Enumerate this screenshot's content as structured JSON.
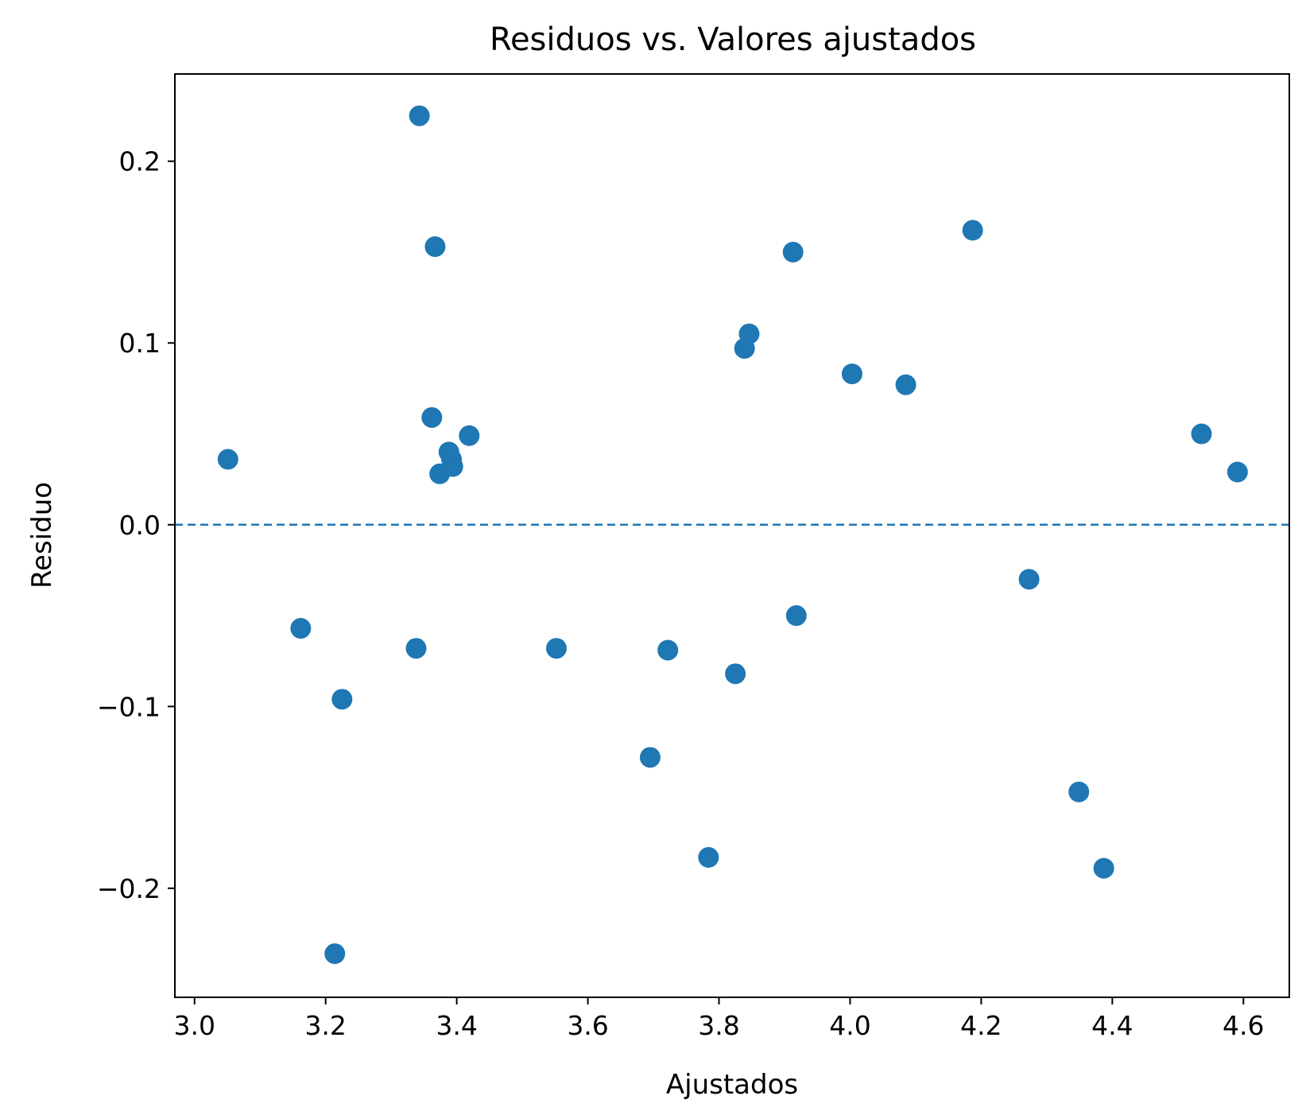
{
  "chart_data": {
    "type": "scatter",
    "title": "Residuos vs. Valores ajustados",
    "xlabel": "Ajustados",
    "ylabel": "Residuo",
    "xlim": [
      2.97,
      4.67
    ],
    "ylim": [
      -0.26,
      0.248
    ],
    "xticks": [
      3.0,
      3.2,
      3.4,
      3.6,
      3.8,
      4.0,
      4.2,
      4.4,
      4.6
    ],
    "xtick_labels": [
      "3.0",
      "3.2",
      "3.4",
      "3.6",
      "3.8",
      "4.0",
      "4.2",
      "4.4",
      "4.6"
    ],
    "yticks": [
      -0.2,
      -0.1,
      0.0,
      0.1,
      0.2
    ],
    "ytick_labels": [
      "−0.2",
      "−0.1",
      "0.0",
      "0.1",
      "0.2"
    ],
    "reference_line": {
      "y": 0.0,
      "style": "dashed"
    },
    "grid": false,
    "color": "#1f77b4",
    "x": [
      3.051,
      3.162,
      3.214,
      3.225,
      3.338,
      3.362,
      3.367,
      3.343,
      3.374,
      3.388,
      3.392,
      3.394,
      3.419,
      3.552,
      3.695,
      3.722,
      3.784,
      3.825,
      3.839,
      3.846,
      3.913,
      3.918,
      4.003,
      4.085,
      4.187,
      4.273,
      4.349,
      4.387,
      4.536,
      4.591
    ],
    "y": [
      0.036,
      -0.057,
      -0.236,
      -0.096,
      -0.068,
      0.059,
      0.153,
      0.225,
      0.028,
      0.04,
      0.036,
      0.032,
      0.049,
      -0.068,
      -0.128,
      -0.069,
      -0.183,
      -0.082,
      0.097,
      0.105,
      0.15,
      -0.05,
      0.083,
      0.077,
      0.162,
      -0.03,
      -0.147,
      -0.189,
      0.05,
      0.029
    ]
  }
}
